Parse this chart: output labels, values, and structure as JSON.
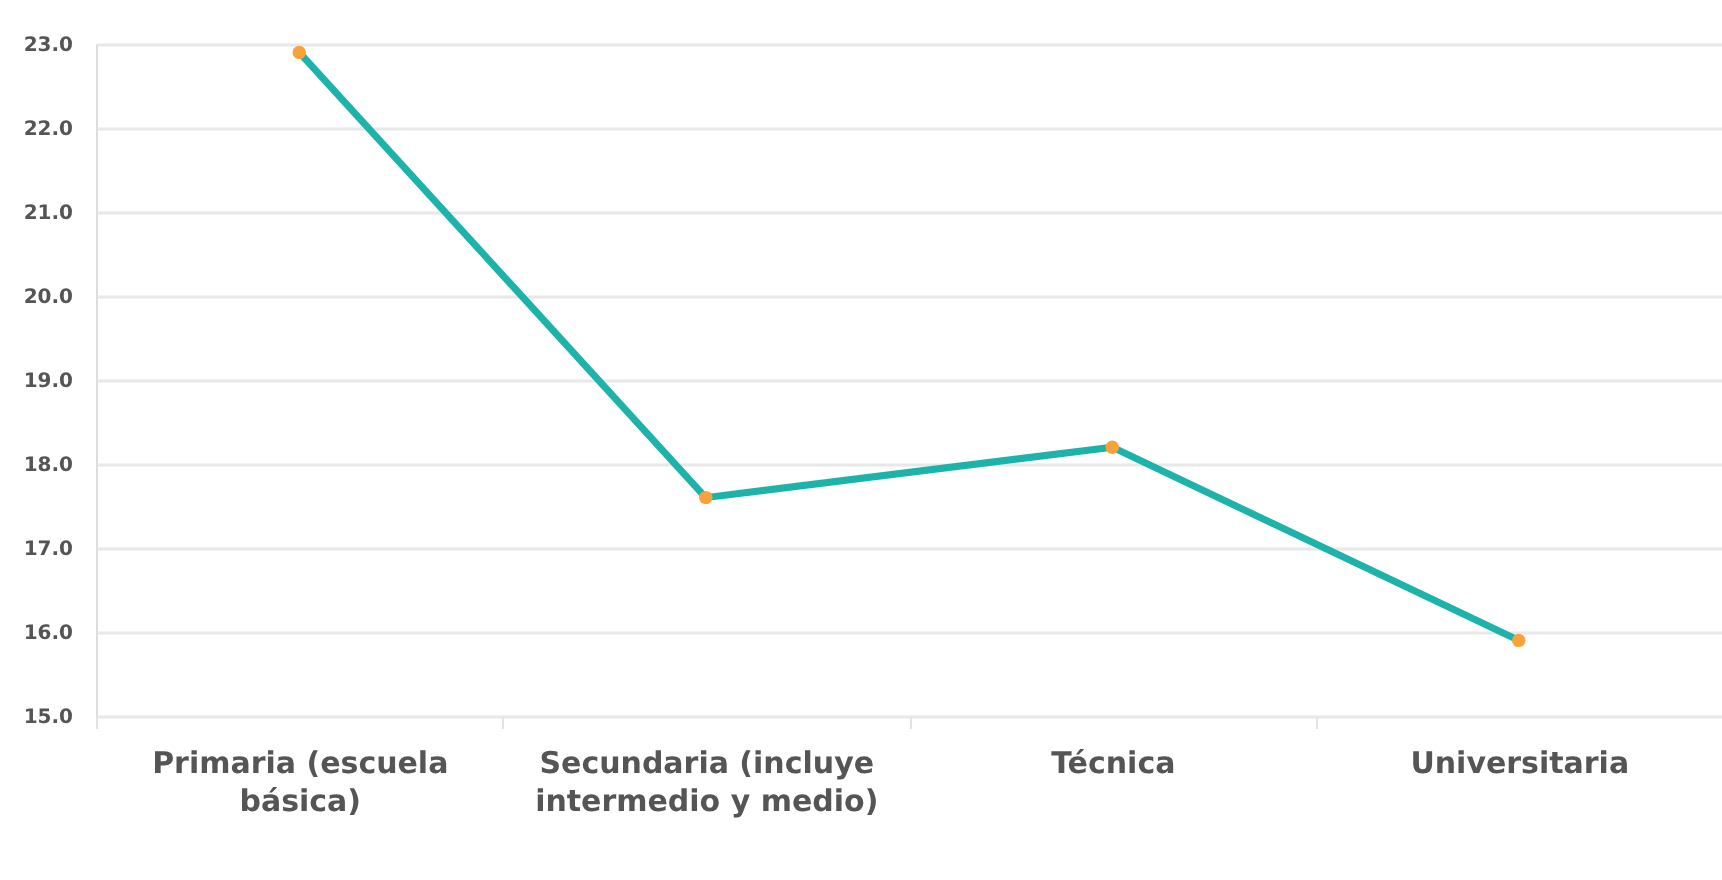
{
  "chart_data": {
    "type": "line",
    "categories": [
      "Primaria (escuela básica)",
      "Secundaria (incluye intermedio y medio)",
      "Técnica",
      "Universitaria"
    ],
    "series": [
      {
        "color": "#1db3aa",
        "colors": [
          "#f7a23b",
          "#f7a23b",
          "#f7a23b",
          "#f7a23b"
        ],
        "values": [
          22.9,
          17.6,
          18.2,
          15.9
        ]
      }
    ],
    "ylim": [
      15,
      23
    ],
    "yticks": [
      {
        "value": 15,
        "label": "15.0"
      },
      {
        "value": 16,
        "label": "16.0"
      },
      {
        "value": 17,
        "label": "17.0"
      },
      {
        "value": 18,
        "label": "18.0"
      },
      {
        "value": 19,
        "label": "19.0"
      },
      {
        "value": 20,
        "label": "20.0"
      },
      {
        "value": 21,
        "label": "21.0"
      },
      {
        "value": 22,
        "label": "22.0"
      },
      {
        "value": 23,
        "label": "23.0"
      }
    ],
    "grid": "y",
    "marker": "circle",
    "line_style": "solid"
  }
}
